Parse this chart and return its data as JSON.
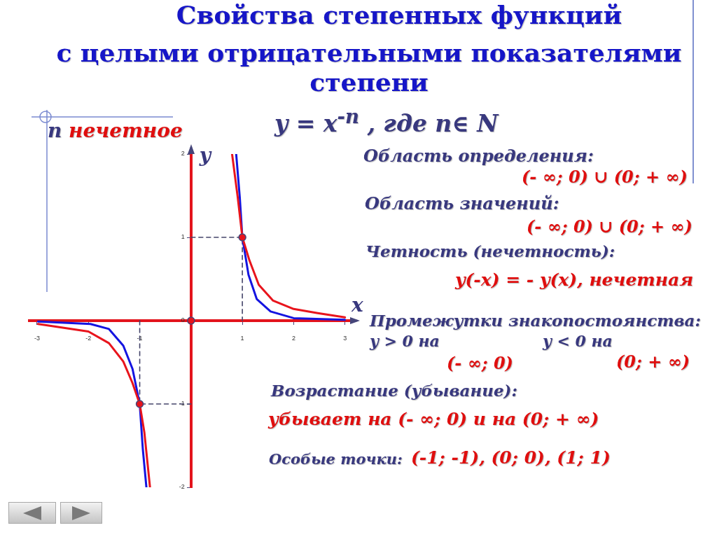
{
  "chart_data": {
    "type": "line",
    "title": "Свойства степенных функций",
    "subtitle": "с целыми отрицательными показателями степени",
    "xlabel": "x",
    "ylabel": "y",
    "xlim": [
      -3.15,
      3.1
    ],
    "ylim": [
      -2,
      2
    ],
    "xticks": [
      -3,
      -2,
      -1,
      1,
      2,
      3
    ],
    "yticks": [
      -2,
      -1,
      0,
      1,
      2
    ],
    "series": [
      {
        "type": "line",
        "color": "#e8141c",
        "marker": "none",
        "x": [
          -2.98,
          -2.0,
          -1.6,
          -1.32,
          -1.14,
          -1,
          -0.91,
          -0.8,
          0,
          0.8,
          0.91,
          1,
          1.14,
          1.32,
          1.6,
          2.0,
          2.47,
          3.0
        ],
        "values": [
          -0.04,
          -0.13,
          -0.27,
          -0.49,
          -0.75,
          -1,
          -1.34,
          -2,
          null,
          2,
          1.48,
          1,
          0.72,
          0.43,
          0.24,
          0.14,
          0.09,
          0.04
        ]
      },
      {
        "type": "line",
        "color": "#1414e0",
        "marker": "none",
        "x": [
          -2.98,
          -1.96,
          -1.6,
          -1.32,
          -1.14,
          -1,
          -0.94,
          -0.87,
          0,
          0.88,
          0.95,
          1,
          1.12,
          1.28,
          1.55,
          2,
          3
        ],
        "values": [
          -0.01,
          -0.04,
          -0.1,
          -0.3,
          -0.58,
          -1,
          -1.54,
          -2,
          null,
          2,
          1.48,
          1,
          0.55,
          0.26,
          0.11,
          0.03,
          0.01
        ]
      },
      {
        "type": "line",
        "color": "#44446a",
        "marker": "none",
        "line_style": "dashed",
        "x": [
          0,
          1,
          1
        ],
        "values": [
          1,
          1,
          0
        ]
      },
      {
        "type": "line",
        "color": "#44446a",
        "marker": "none",
        "line_style": "dashed",
        "x": [
          -1,
          -1,
          0
        ],
        "values": [
          0,
          -1,
          -1
        ]
      },
      {
        "type": "scatter",
        "color": "#e8141c",
        "marker": "circle",
        "x": [
          -1,
          0,
          1
        ],
        "values": [
          -1,
          0,
          1
        ]
      }
    ],
    "annotations": [
      "y = x$^{-n}$ , где n∈ N",
      "n нечетное",
      "Область определения:",
      "(- ∞; 0) ∪ (0; + ∞)",
      "Область значений:",
      "(- ∞; 0) ∪ (0; + ∞)",
      "Четность (нечетность):",
      "y(-x) = - y(x), нечетная",
      "Промежутки знакопостоянства:",
      "y > 0 на",
      "y < 0 на",
      "(- ∞; 0)",
      "(0; + ∞)",
      "Возрастание (убывание):",
      "убывает на (- ∞; 0) и на (0; + ∞)",
      "Особые точки:",
      "(-1; -1), (0; 0), (1; 1)"
    ]
  }
}
